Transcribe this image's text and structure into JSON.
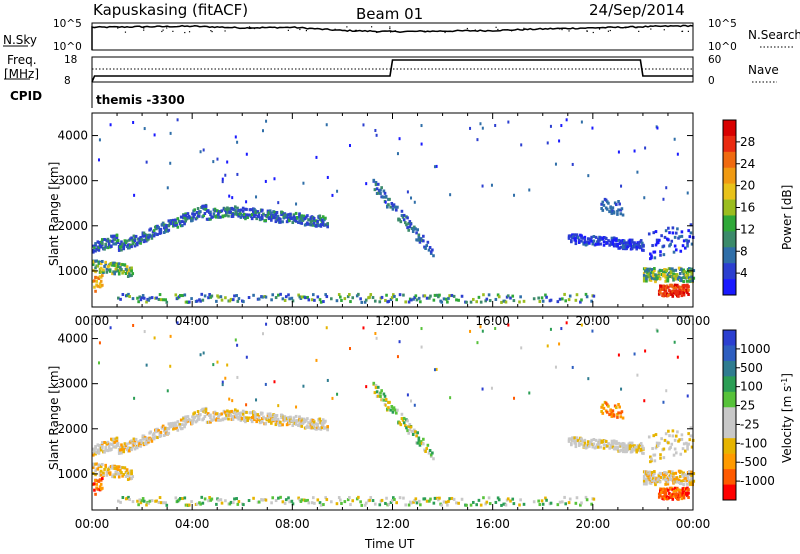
{
  "header": {
    "station": "Kapuskasing (fitACF)",
    "beam": "Beam 01",
    "date": "24/Sep/2014"
  },
  "top_panels": {
    "nsky": {
      "label": "N.Sky",
      "tick_top": "10^5",
      "tick_bottom": "10^0",
      "right_label": "N.Search",
      "right_tick_top": "10^5",
      "right_tick_bottom": "10^0"
    },
    "freq": {
      "label_line1": "Freq.",
      "label_line2": "[MHz]",
      "tick_top": "18",
      "tick_bottom": "8",
      "right_label": "Nave",
      "right_tick_top": "60",
      "right_tick_bottom": "0"
    },
    "cpid": {
      "label": "CPID",
      "value": "themis -3300"
    }
  },
  "colors": {
    "power_scale": [
      "#1a1aff",
      "#2c3fd0",
      "#2f6ea8",
      "#3b8a6a",
      "#2fa838",
      "#9bbd1f",
      "#e8c21a",
      "#f09a12",
      "#f06a10",
      "#ea2a10",
      "#d80000"
    ],
    "velocity_scale": [
      "#ff0000",
      "#ff5a00",
      "#ff9a00",
      "#e6b400",
      "#c8c8c8",
      "#c8c8c8",
      "#57c23a",
      "#2b9e55",
      "#2f7c90",
      "#2e5ec0",
      "#2b3fd0"
    ]
  },
  "chart_data": [
    {
      "type": "line",
      "title": "N.Sky",
      "x": [
        0,
        2,
        4,
        6,
        8,
        10,
        12,
        14,
        16,
        18,
        20,
        22,
        24
      ],
      "series": [
        {
          "name": "N.Sky",
          "values": [
            4.2,
            4.3,
            4.4,
            4.1,
            4.2,
            3.6,
            3.4,
            3.5,
            3.6,
            3.9,
            4.1,
            4.3,
            4.5
          ]
        }
      ],
      "ylim": [
        0,
        5
      ],
      "ylabel": "N.Sky",
      "log_scale": true
    },
    {
      "type": "line",
      "title": "Freq.",
      "x": [
        0.0,
        0.1,
        11.9,
        12.0,
        21.9,
        22.0,
        24.0
      ],
      "series": [
        {
          "name": "Freq. [MHz]",
          "values": [
            8,
            10.4,
            10.4,
            16.8,
            16.8,
            10.4,
            10.4
          ]
        }
      ],
      "ylim": [
        8,
        18
      ],
      "ylabel": "Freq. [MHz]"
    },
    {
      "type": "heatmap",
      "title": "Power",
      "x_ticks": [
        "00:00",
        "04:00",
        "08:00",
        "12:00",
        "16:00",
        "20:00",
        "00:00"
      ],
      "y_ticks": [
        "1000",
        "2000",
        "3000",
        "4000"
      ],
      "ylabel": "Slant Range [km]",
      "ylim": [
        200,
        4500
      ],
      "colorbar_label": "Power [dB]",
      "colorbar_ticks": [
        "28",
        "24",
        "20",
        "16",
        "12",
        "8",
        "4"
      ],
      "clim": [
        0,
        32
      ]
    },
    {
      "type": "heatmap",
      "title": "Velocity",
      "x_ticks": [
        "00:00",
        "04:00",
        "08:00",
        "12:00",
        "16:00",
        "20:00",
        "00:00"
      ],
      "y_ticks": [
        "1000",
        "2000",
        "3000",
        "4000"
      ],
      "xlabel": "Time UT",
      "ylabel": "Slant Range [km]",
      "ylim": [
        200,
        4500
      ],
      "colorbar_label": "Velocity [m s-1]",
      "colorbar_ticks": [
        "1000",
        "500",
        "100",
        "25",
        "-25",
        "-100",
        "-500",
        "-1000"
      ]
    }
  ],
  "axes": {
    "xlabel": "Time UT",
    "x_ticks": [
      "00:00",
      "04:00",
      "08:00",
      "12:00",
      "16:00",
      "20:00",
      "00:00"
    ],
    "y_ticks": [
      "1000",
      "2000",
      "3000",
      "4000"
    ],
    "ylabel": "Slant Range [km]",
    "power_label": "Power [dB]",
    "power_ticks": [
      "28",
      "24",
      "20",
      "16",
      "12",
      "8",
      "4"
    ],
    "velocity_label_main": "Velocity [m s",
    "velocity_label_sup": "-1",
    "velocity_label_end": "]",
    "velocity_ticks": [
      "1000",
      "500",
      "100",
      "25",
      "-25",
      "-100",
      "-500",
      "-1000"
    ]
  }
}
